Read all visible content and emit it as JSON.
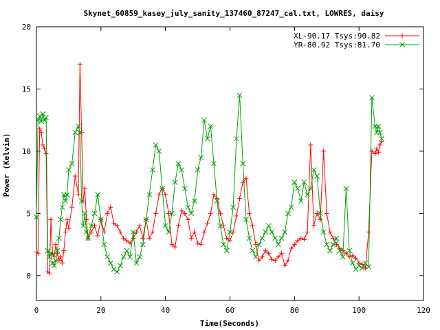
{
  "chart_data": {
    "type": "line",
    "title": "Skynet_60859_kasey_july_sanity_137460_87247_cal.txt, LOWRES, daisy",
    "xlabel": "Time(Seconds)",
    "ylabel": "Power (Kelvin)",
    "xlim": [
      0,
      120
    ],
    "ylim": [
      -2,
      20
    ],
    "xticks": [
      "0",
      "20",
      "40",
      "60",
      "80",
      "100",
      "120"
    ],
    "yticks": [
      "0",
      "5",
      "10",
      "15",
      "20"
    ],
    "grid": false,
    "legend_position": "top-right",
    "series": [
      {
        "name": "XL-90.17 Tsys:90.82",
        "color": "#ff0000",
        "marker": "+",
        "x": [
          0,
          0.5,
          1,
          1.5,
          2,
          2.5,
          3,
          3.5,
          4,
          4.5,
          5,
          5.5,
          6,
          6.5,
          7,
          7.5,
          8,
          8.5,
          9,
          9.5,
          10,
          11,
          12,
          13,
          13.5,
          14,
          14.5,
          15,
          15.5,
          16,
          17,
          18,
          19,
          20,
          21,
          22,
          23,
          24,
          25,
          26,
          27,
          28,
          29,
          30,
          31,
          32,
          33,
          34,
          35,
          36,
          37,
          38,
          39,
          40,
          41,
          42,
          43,
          44,
          45,
          46,
          47,
          48,
          49,
          50,
          51,
          52,
          53,
          54,
          55,
          56,
          57,
          58,
          59,
          60,
          61,
          62,
          63,
          64,
          65,
          66,
          67,
          68,
          69,
          70,
          71,
          72,
          73,
          74,
          75,
          76,
          77,
          78,
          79,
          80,
          81,
          82,
          83,
          84,
          85,
          86,
          87,
          88,
          89,
          90,
          91,
          92,
          93,
          94,
          95,
          96,
          97,
          98,
          99,
          100,
          101,
          102,
          103,
          104,
          105,
          105.5,
          106,
          106.5,
          107
        ],
        "y": [
          1.9,
          1.8,
          11.8,
          11.5,
          10.5,
          10.2,
          9.8,
          0.3,
          0.2,
          4.5,
          1.8,
          1.5,
          2.5,
          1.8,
          1.2,
          1.5,
          1.0,
          2.0,
          3.5,
          4.5,
          3.8,
          5.5,
          8.0,
          6.5,
          17.0,
          11.5,
          6.0,
          7.0,
          4.5,
          3.0,
          3.5,
          4.0,
          3.2,
          4.5,
          3.5,
          5.0,
          5.5,
          4.2,
          4.0,
          3.5,
          3.0,
          2.8,
          2.6,
          3.0,
          3.5,
          4.0,
          3.0,
          4.5,
          3.0,
          3.5,
          5.0,
          6.5,
          7.0,
          6.5,
          5.0,
          2.5,
          2.3,
          4.0,
          5.2,
          5.0,
          4.5,
          3.0,
          3.5,
          2.6,
          2.5,
          3.5,
          4.2,
          5.0,
          6.5,
          6.2,
          5.0,
          4.0,
          3.0,
          2.8,
          3.5,
          4.8,
          6.2,
          7.5,
          7.8,
          5.0,
          4.0,
          2.5,
          1.2,
          1.5,
          2.0,
          1.8,
          1.3,
          1.2,
          1.5,
          1.8,
          0.8,
          1.2,
          2.2,
          2.5,
          2.8,
          3.0,
          2.9,
          3.5,
          10.5,
          4.0,
          5.0,
          4.5,
          10.0,
          5.0,
          3.5,
          3.0,
          2.5,
          2.2,
          2.0,
          1.8,
          1.5,
          1.6,
          1.4,
          1.0,
          0.9,
          0.6,
          3.5,
          10.0,
          9.8,
          10.2,
          9.9,
          10.5,
          10.8
        ]
      },
      {
        "name": "YR-80.92 Tsys:81.70",
        "color": "#00a000",
        "marker": "x",
        "x": [
          0,
          0.5,
          1,
          1.5,
          2,
          2.5,
          3,
          3.5,
          4,
          4.5,
          5,
          5.5,
          6,
          6.5,
          7,
          7.5,
          8,
          8.5,
          9,
          9.5,
          10,
          11,
          12,
          13,
          13.5,
          14,
          14.5,
          15,
          15.5,
          16,
          17,
          18,
          19,
          20,
          21,
          22,
          23,
          24,
          25,
          26,
          27,
          28,
          29,
          30,
          31,
          32,
          33,
          34,
          35,
          36,
          37,
          38,
          39,
          40,
          41,
          42,
          43,
          44,
          45,
          46,
          47,
          48,
          49,
          50,
          51,
          52,
          53,
          54,
          55,
          56,
          57,
          58,
          59,
          60,
          61,
          62,
          63,
          64,
          65,
          66,
          67,
          68,
          69,
          70,
          71,
          72,
          73,
          74,
          75,
          76,
          77,
          78,
          79,
          80,
          81,
          82,
          83,
          84,
          85,
          86,
          87,
          88,
          89,
          90,
          91,
          92,
          93,
          94,
          95,
          96,
          97,
          98,
          99,
          100,
          101,
          102,
          103,
          104,
          105,
          105.5,
          106,
          106.5,
          107
        ],
        "y": [
          4.7,
          12.5,
          12.8,
          12.4,
          13.0,
          12.5,
          12.7,
          2.0,
          1.5,
          1.8,
          1.0,
          0.8,
          1.2,
          2.0,
          3.0,
          4.5,
          5.5,
          6.5,
          6.0,
          6.5,
          8.5,
          9.0,
          11.5,
          12.0,
          11.5,
          6.0,
          4.0,
          5.0,
          3.5,
          3.0,
          4.0,
          5.0,
          6.5,
          4.5,
          2.5,
          1.5,
          1.0,
          0.5,
          0.3,
          0.8,
          1.5,
          2.0,
          1.5,
          3.5,
          1.0,
          1.5,
          2.5,
          4.5,
          6.5,
          8.5,
          10.5,
          10.0,
          7.0,
          4.0,
          3.5,
          5.0,
          7.5,
          9.0,
          8.5,
          7.0,
          5.5,
          5.0,
          6.0,
          8.5,
          9.5,
          12.5,
          11.0,
          12.0,
          9.0,
          6.0,
          4.0,
          2.5,
          2.0,
          3.5,
          5.5,
          11.0,
          14.5,
          9.0,
          4.5,
          3.0,
          2.0,
          1.5,
          2.5,
          3.0,
          3.5,
          4.0,
          3.5,
          3.0,
          2.5,
          3.0,
          3.5,
          5.0,
          5.5,
          7.5,
          7.0,
          6.0,
          7.5,
          6.5,
          7.0,
          8.5,
          8.0,
          5.0,
          3.5,
          2.5,
          2.0,
          2.5,
          3.0,
          2.0,
          1.5,
          7.0,
          2.0,
          1.0,
          0.5,
          0.8,
          0.6,
          1.0,
          0.7,
          14.3,
          12.0,
          11.5,
          12.0,
          11.5,
          11.0
        ]
      }
    ]
  }
}
